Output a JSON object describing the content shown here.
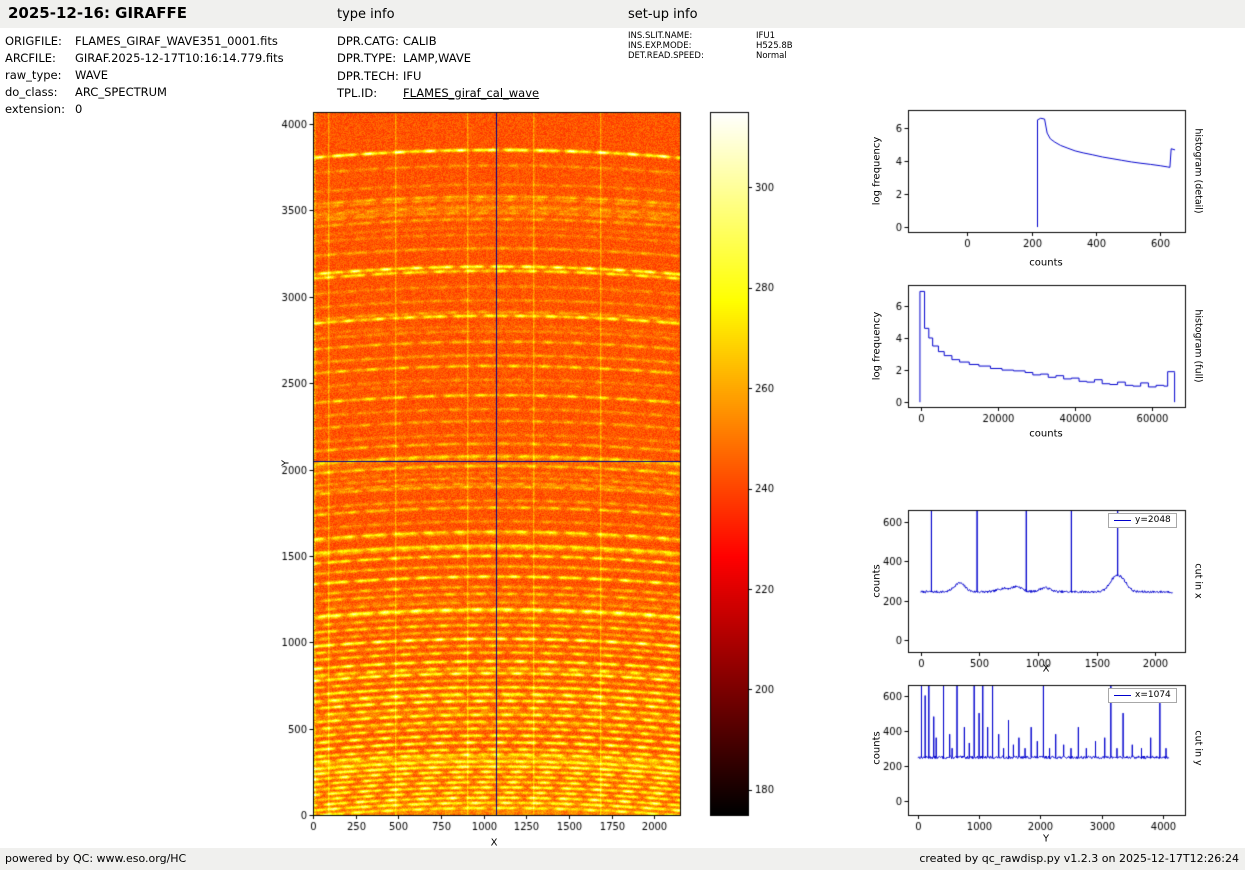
{
  "header": {
    "title": "2025-12-16: GIRAFFE",
    "type_info_label": "type info",
    "setup_info_label": "set-up info"
  },
  "file_info": {
    "rows": [
      {
        "label": "ORIGFILE:",
        "value": "FLAMES_GIRAF_WAVE351_0001.fits"
      },
      {
        "label": "ARCFILE:",
        "value": "GIRAF.2025-12-17T10:16:14.779.fits"
      },
      {
        "label": "raw_type:",
        "value": "WAVE"
      },
      {
        "label": "do_class:",
        "value": "ARC_SPECTRUM"
      },
      {
        "label": "extension:",
        "value": "0"
      }
    ]
  },
  "type_info": {
    "rows": [
      {
        "label": "DPR.CATG:",
        "value": "CALIB"
      },
      {
        "label": "DPR.TYPE:",
        "value": "LAMP,WAVE"
      },
      {
        "label": "DPR.TECH:",
        "value": "IFU"
      },
      {
        "label": "TPL.ID:",
        "value": "FLAMES_giraf_cal_wave"
      }
    ]
  },
  "setup_info": {
    "rows": [
      {
        "label": "INS.SLIT.NAME:",
        "value": "IFU1"
      },
      {
        "label": "INS.EXP.MODE:",
        "value": "H525.8B"
      },
      {
        "label": "DET.READ.SPEED:",
        "value": "Normal"
      }
    ]
  },
  "footer": {
    "left": "powered by QC: www.eso.org/HC",
    "right": "created by qc_rawdisp.py v1.2.3 on 2025-12-17T12:26:24"
  },
  "chart_data": [
    {
      "id": "raw-image",
      "type": "heatmap",
      "xlabel": "X",
      "ylabel": "Y",
      "xlim": [
        0,
        2150
      ],
      "ylim": [
        0,
        4070
      ],
      "xticks": [
        0,
        250,
        500,
        750,
        1000,
        1250,
        1500,
        1750,
        2000
      ],
      "yticks": [
        0,
        500,
        1000,
        1500,
        2000,
        2500,
        3000,
        3500,
        4000
      ],
      "colormap": "hot",
      "value_range": [
        175,
        315
      ],
      "background_level": 243,
      "colorbar_ticks": [
        180,
        200,
        220,
        240,
        260,
        280,
        300
      ],
      "crosshair": {
        "x": 1074,
        "y": 2048,
        "color": "#00008b"
      },
      "bright_columns_x": [
        90,
        480,
        900,
        1290,
        1680
      ],
      "n_faint_lines": 45,
      "noise_seed": 42,
      "emission_lines": [
        [
          3850,
          58
        ],
        [
          3760,
          14
        ],
        [
          3650,
          12
        ],
        [
          3580,
          22
        ],
        [
          3500,
          10
        ],
        [
          3450,
          18
        ],
        [
          3360,
          10
        ],
        [
          3280,
          12
        ],
        [
          3175,
          52
        ],
        [
          3150,
          38
        ],
        [
          3060,
          12
        ],
        [
          2980,
          14
        ],
        [
          2890,
          42
        ],
        [
          2800,
          12
        ],
        [
          2740,
          22
        ],
        [
          2660,
          12
        ],
        [
          2600,
          28
        ],
        [
          2520,
          12
        ],
        [
          2430,
          32
        ],
        [
          2350,
          14
        ],
        [
          2280,
          18
        ],
        [
          2200,
          12
        ],
        [
          2150,
          22
        ],
        [
          2080,
          14
        ],
        [
          2020,
          26
        ],
        [
          1950,
          14
        ],
        [
          1900,
          22
        ],
        [
          1820,
          16
        ],
        [
          1780,
          26
        ],
        [
          1700,
          14
        ],
        [
          1640,
          38
        ],
        [
          1560,
          20
        ],
        [
          1500,
          24
        ],
        [
          1440,
          16
        ],
        [
          1380,
          45
        ],
        [
          1320,
          22
        ],
        [
          1280,
          26
        ],
        [
          1230,
          18
        ],
        [
          1190,
          40
        ],
        [
          1140,
          22
        ],
        [
          1100,
          26
        ],
        [
          1060,
          20
        ],
        [
          1020,
          55
        ],
        [
          980,
          28
        ],
        [
          940,
          32
        ],
        [
          890,
          48
        ],
        [
          850,
          30
        ],
        [
          820,
          50
        ],
        [
          780,
          28
        ],
        [
          740,
          34
        ],
        [
          700,
          42
        ],
        [
          660,
          50
        ],
        [
          620,
          36
        ],
        [
          580,
          42
        ],
        [
          540,
          38
        ],
        [
          500,
          36
        ],
        [
          460,
          44
        ],
        [
          420,
          50
        ],
        [
          380,
          40
        ],
        [
          350,
          44
        ],
        [
          310,
          38
        ],
        [
          280,
          42
        ],
        [
          250,
          46
        ],
        [
          220,
          40
        ],
        [
          190,
          44
        ],
        [
          160,
          48
        ],
        [
          130,
          42
        ],
        [
          100,
          52
        ],
        [
          70,
          46
        ],
        [
          40,
          44
        ]
      ]
    },
    {
      "id": "histogram-detail",
      "type": "line",
      "side_label": "histogram (detail)",
      "xlabel": "counts",
      "ylabel": "log frequency",
      "xlim": [
        -185,
        677
      ],
      "ylim": [
        -0.3,
        7.1
      ],
      "xticks": [
        0,
        200,
        400,
        600
      ],
      "yticks": [
        0,
        2,
        4,
        6
      ],
      "color": "#0000cd",
      "points": [
        [
          218,
          0
        ],
        [
          218,
          6.5
        ],
        [
          228,
          6.6
        ],
        [
          240,
          6.55
        ],
        [
          248,
          5.7
        ],
        [
          258,
          5.35
        ],
        [
          272,
          5.15
        ],
        [
          290,
          4.95
        ],
        [
          310,
          4.8
        ],
        [
          335,
          4.62
        ],
        [
          360,
          4.5
        ],
        [
          390,
          4.38
        ],
        [
          420,
          4.25
        ],
        [
          450,
          4.15
        ],
        [
          480,
          4.05
        ],
        [
          510,
          3.95
        ],
        [
          540,
          3.87
        ],
        [
          570,
          3.8
        ],
        [
          600,
          3.72
        ],
        [
          622,
          3.65
        ],
        [
          630,
          3.62
        ],
        [
          634,
          4.75
        ],
        [
          646,
          4.68
        ]
      ]
    },
    {
      "id": "histogram-full",
      "type": "step",
      "side_label": "histogram (full)",
      "xlabel": "counts",
      "ylabel": "log frequency",
      "xlim": [
        -3400,
        68500
      ],
      "ylim": [
        -0.3,
        7.3
      ],
      "xticks": [
        0,
        20000,
        40000,
        60000
      ],
      "yticks": [
        0,
        2,
        4,
        6
      ],
      "color": "#0000cd",
      "points": [
        [
          -300,
          0
        ],
        [
          -300,
          6.9
        ],
        [
          900,
          6.9
        ],
        [
          900,
          4.6
        ],
        [
          2000,
          4.0
        ],
        [
          3000,
          3.5
        ],
        [
          4500,
          3.15
        ],
        [
          6000,
          2.9
        ],
        [
          8000,
          2.65
        ],
        [
          10000,
          2.5
        ],
        [
          12500,
          2.35
        ],
        [
          15000,
          2.25
        ],
        [
          18000,
          2.1
        ],
        [
          21000,
          2.0
        ],
        [
          24000,
          1.95
        ],
        [
          27000,
          1.85
        ],
        [
          29000,
          1.7
        ],
        [
          31000,
          1.75
        ],
        [
          33000,
          1.55
        ],
        [
          35000,
          1.65
        ],
        [
          37000,
          1.45
        ],
        [
          39000,
          1.5
        ],
        [
          41000,
          1.3
        ],
        [
          43000,
          1.25
        ],
        [
          45000,
          1.4
        ],
        [
          47000,
          1.15
        ],
        [
          49000,
          1.1
        ],
        [
          51000,
          1.25
        ],
        [
          53000,
          1.05
        ],
        [
          55000,
          1.0
        ],
        [
          57000,
          1.2
        ],
        [
          59000,
          0.95
        ],
        [
          61000,
          1.05
        ],
        [
          63000,
          1.0
        ],
        [
          64000,
          1.9
        ],
        [
          65800,
          1.85
        ],
        [
          65800,
          0
        ]
      ]
    },
    {
      "id": "cut-in-x",
      "type": "line",
      "legend": "y=2048",
      "side_label": "cut in x",
      "xlabel": "X",
      "ylabel": "counts",
      "xlim": [
        -110,
        2255
      ],
      "ylim": [
        -60,
        660
      ],
      "xticks": [
        0,
        500,
        1000,
        1500,
        2000
      ],
      "yticks": [
        0,
        200,
        400,
        600
      ],
      "color": "#0000cd",
      "xdata_range": [
        0,
        2150
      ],
      "baseline": 245,
      "noise_amp": 6,
      "noise_seed": 7,
      "spikes": [
        [
          90,
          655
        ],
        [
          480,
          655
        ],
        [
          900,
          655
        ],
        [
          1285,
          655
        ],
        [
          1680,
          655
        ]
      ],
      "bumps": [
        [
          330,
          290
        ],
        [
          700,
          262
        ],
        [
          820,
          272
        ],
        [
          1060,
          266
        ],
        [
          1650,
          305
        ],
        [
          1720,
          298
        ]
      ]
    },
    {
      "id": "cut-in-y",
      "type": "line",
      "legend": "x=1074",
      "side_label": "cut in y",
      "xlabel": "Y",
      "ylabel": "counts",
      "xlim": [
        -160,
        4360
      ],
      "ylim": [
        -80,
        660
      ],
      "xticks": [
        0,
        1000,
        2000,
        3000,
        4000
      ],
      "yticks": [
        0,
        200,
        400,
        600
      ],
      "color": "#0000cd",
      "xdata_range": [
        0,
        4100
      ],
      "baseline": 248,
      "noise_amp": 8,
      "noise_seed": 13,
      "spikes": [
        [
          60,
          655
        ],
        [
          120,
          600
        ],
        [
          180,
          655
        ],
        [
          260,
          480
        ],
        [
          300,
          360
        ],
        [
          420,
          655
        ],
        [
          520,
          380
        ],
        [
          560,
          300
        ],
        [
          640,
          655
        ],
        [
          760,
          420
        ],
        [
          840,
          330
        ],
        [
          920,
          655
        ],
        [
          1000,
          500
        ],
        [
          1060,
          655
        ],
        [
          1140,
          420
        ],
        [
          1220,
          655
        ],
        [
          1320,
          380
        ],
        [
          1400,
          300
        ],
        [
          1480,
          460
        ],
        [
          1560,
          320
        ],
        [
          1650,
          360
        ],
        [
          1750,
          300
        ],
        [
          1850,
          420
        ],
        [
          1950,
          340
        ],
        [
          2050,
          655
        ],
        [
          2150,
          300
        ],
        [
          2250,
          380
        ],
        [
          2380,
          320
        ],
        [
          2500,
          300
        ],
        [
          2620,
          420
        ],
        [
          2750,
          300
        ],
        [
          2900,
          340
        ],
        [
          3050,
          360
        ],
        [
          3150,
          655
        ],
        [
          3250,
          300
        ],
        [
          3350,
          500
        ],
        [
          3500,
          320
        ],
        [
          3650,
          300
        ],
        [
          3800,
          360
        ],
        [
          3950,
          560
        ],
        [
          4050,
          300
        ]
      ],
      "bumps": []
    }
  ]
}
